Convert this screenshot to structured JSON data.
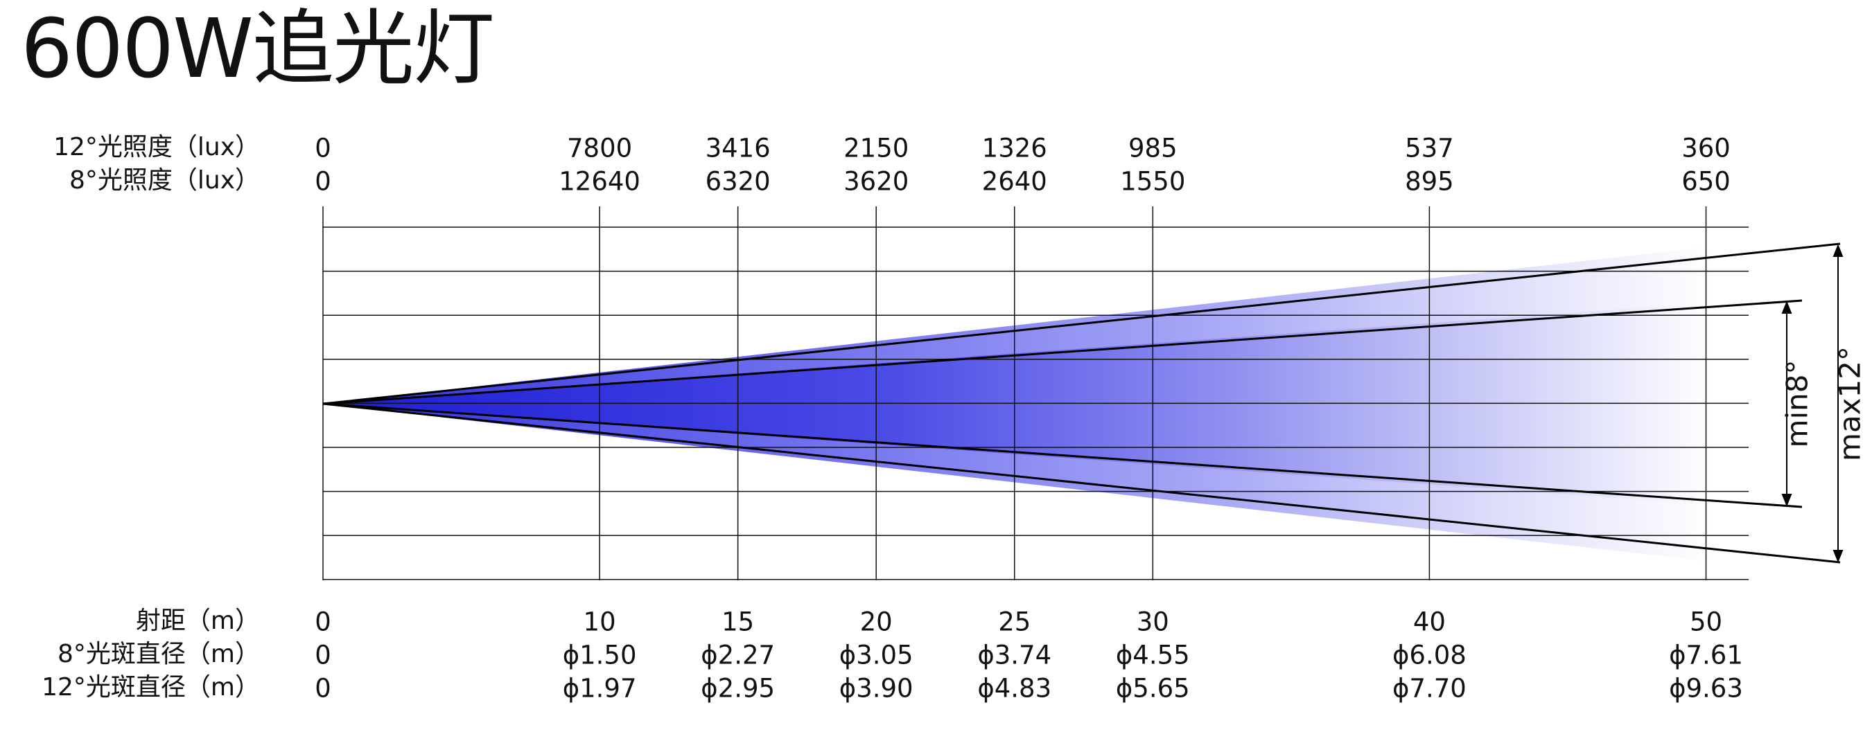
{
  "title": "600W追光灯",
  "labels": {
    "lux12": "12°光照度（lux）",
    "lux8": "8°光照度（lux）",
    "distance": "射距（m）",
    "spot8": "8°光斑直径（m）",
    "spot12": "12°光斑直径（m）"
  },
  "angles": {
    "min": "min8°",
    "max": "max12°"
  },
  "colors": {
    "beam_start": "#1c1cd6",
    "beam_mid": "#8f8ff0",
    "beam_end": "#ffffff",
    "grid": "#111111"
  },
  "chart_data": {
    "type": "table",
    "columns": [
      "0",
      "10",
      "15",
      "20",
      "25",
      "30",
      "40",
      "50"
    ],
    "distance_m": [
      0,
      10,
      15,
      20,
      25,
      30,
      40,
      50
    ],
    "lux_12deg": [
      "0",
      "7800",
      "3416",
      "2150",
      "1326",
      "985",
      "537",
      "360"
    ],
    "lux_8deg": [
      "0",
      "12640",
      "6320",
      "3620",
      "2640",
      "1550",
      "895",
      "650"
    ],
    "spot_8deg": [
      "0",
      "ϕ1.50",
      "ϕ2.27",
      "ϕ3.05",
      "ϕ3.74",
      "ϕ4.55",
      "ϕ6.08",
      "ϕ7.61"
    ],
    "spot_12deg": [
      "0",
      "ϕ1.97",
      "ϕ2.95",
      "ϕ3.90",
      "ϕ4.83",
      "ϕ5.65",
      "ϕ7.70",
      "ϕ9.63"
    ],
    "beam_angles_deg": {
      "min": 8,
      "max": 12
    }
  }
}
